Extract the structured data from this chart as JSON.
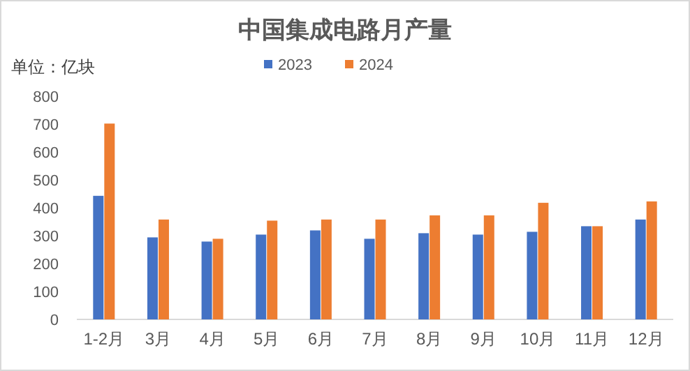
{
  "chart_data": {
    "type": "bar",
    "title": "中国集成电路月产量",
    "annotations": [
      "单位：亿块"
    ],
    "categories": [
      "1-2月",
      "3月",
      "4月",
      "5月",
      "6月",
      "7月",
      "8月",
      "9月",
      "10月",
      "11月",
      "12月"
    ],
    "series": [
      {
        "name": "2023",
        "color": "#4472c4",
        "values": [
          443,
          294,
          279,
          304,
          319,
          289,
          309,
          304,
          314,
          334,
          358
        ]
      },
      {
        "name": "2024",
        "color": "#ed7d31",
        "values": [
          702,
          358,
          289,
          354,
          358,
          358,
          373,
          373,
          418,
          334,
          423
        ]
      }
    ],
    "ylim": [
      0,
      800
    ],
    "yticks": [
      0,
      100,
      200,
      300,
      400,
      500,
      600,
      700,
      800
    ],
    "grid": false,
    "legend": "top"
  }
}
